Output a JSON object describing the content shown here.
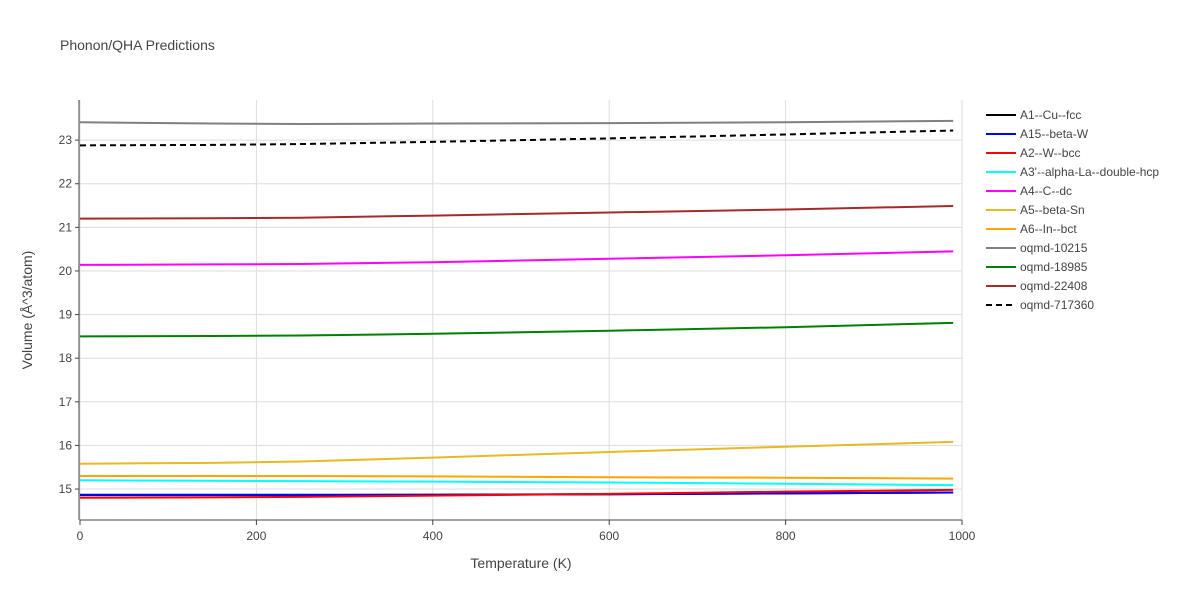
{
  "chart_data": {
    "type": "line",
    "title": "Phonon/QHA Predictions",
    "x_label": "Temperature (K)",
    "y_label": "Volume (Å^3/atom)",
    "x": [
      0,
      150,
      250,
      400,
      600,
      800,
      990
    ],
    "xlim": [
      0,
      1000
    ],
    "xticks": [
      0,
      200,
      400,
      600,
      800,
      1000
    ],
    "ylim": [
      14.29,
      23.92
    ],
    "yticks": [
      15,
      16,
      17,
      18,
      19,
      20,
      21,
      22,
      23
    ],
    "grid": true,
    "legend": "right",
    "series": [
      {
        "name": "A1--Cu--fcc",
        "color": "#000000",
        "values": [
          14.86,
          14.86,
          14.86,
          14.87,
          14.88,
          14.9,
          14.92
        ]
      },
      {
        "name": "A15--beta-W",
        "color": "#0000ff",
        "values": [
          14.87,
          14.87,
          14.87,
          14.87,
          14.88,
          14.9,
          14.92
        ]
      },
      {
        "name": "A2--W--bcc",
        "color": "#ff0000",
        "values": [
          14.8,
          14.81,
          14.82,
          14.85,
          14.89,
          14.94,
          14.98
        ]
      },
      {
        "name": "A3'--alpha-La--double-hcp",
        "color": "#00ffff",
        "values": [
          15.2,
          15.19,
          15.18,
          15.17,
          15.15,
          15.12,
          15.09
        ]
      },
      {
        "name": "A4--C--dc",
        "color": "#ff00ff",
        "values": [
          20.14,
          20.15,
          20.16,
          20.2,
          20.28,
          20.36,
          20.45
        ]
      },
      {
        "name": "A5--beta-Sn",
        "color": "#e8b923",
        "values": [
          15.58,
          15.6,
          15.63,
          15.72,
          15.85,
          15.97,
          16.08
        ]
      },
      {
        "name": "A6--In--bct",
        "color": "#ffa500",
        "values": [
          15.3,
          15.3,
          15.3,
          15.29,
          15.27,
          15.26,
          15.24
        ]
      },
      {
        "name": "oqmd-10215",
        "color": "#808080",
        "values": [
          23.41,
          23.38,
          23.37,
          23.38,
          23.39,
          23.41,
          23.44
        ]
      },
      {
        "name": "oqmd-18985",
        "color": "#008000",
        "values": [
          18.5,
          18.51,
          18.52,
          18.56,
          18.63,
          18.71,
          18.81
        ]
      },
      {
        "name": "oqmd-22408",
        "color": "#a52a2a",
        "values": [
          21.2,
          21.21,
          21.22,
          21.27,
          21.34,
          21.41,
          21.49
        ]
      },
      {
        "name": "oqmd-717360",
        "color": "#000000",
        "dash": "dash",
        "values": [
          22.88,
          22.89,
          22.91,
          22.96,
          23.04,
          23.13,
          23.22
        ]
      }
    ]
  }
}
